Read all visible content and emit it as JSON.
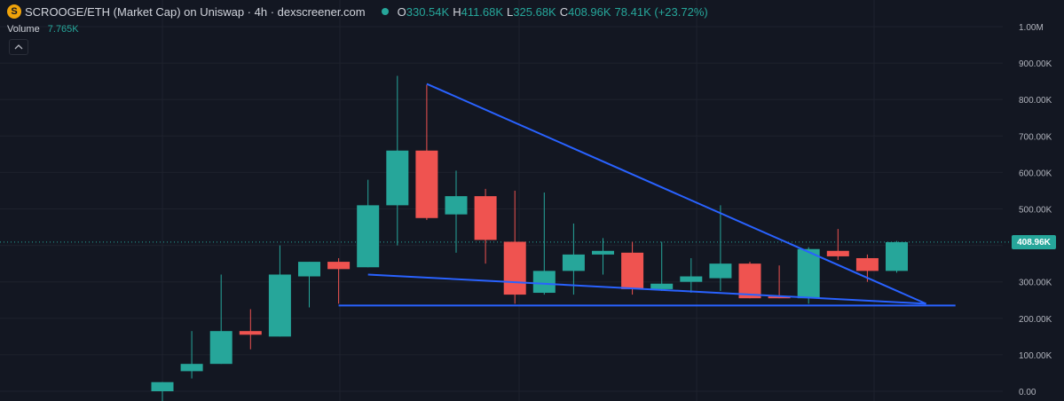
{
  "header": {
    "coin_icon": "S",
    "title": "SCROOGE/ETH (Market Cap) on Uniswap · 4h · dexscreener.com",
    "status_icon": "green-dot-icon",
    "ohlc": {
      "o_label": "O",
      "o_value": "330.54K",
      "h_label": "H",
      "h_value": "411.68K",
      "l_label": "L",
      "l_value": "325.68K",
      "c_label": "C",
      "c_value": "408.96K",
      "change": "78.41K (+23.72%)"
    },
    "volume_label": "Volume",
    "volume_value": "7.765K",
    "collapse_icon": "chevron-up-icon"
  },
  "colors": {
    "background": "#131722",
    "up": "#26a69a",
    "down": "#ef5350",
    "trendline": "#2962ff",
    "grid": "#1e222d",
    "axis_text": "#b2b5be"
  },
  "price_tag": "408.96K",
  "chart_data": {
    "type": "candlestick",
    "y_ticks": [
      "0.00",
      "100.00K",
      "200.00K",
      "300.00K",
      "400.00K",
      "500.00K",
      "600.00K",
      "700.00K",
      "800.00K",
      "900.00K",
      "1.00M"
    ],
    "ylim": [
      0,
      1000
    ],
    "y_unit": "K",
    "grid": true,
    "candles": [
      {
        "o": 0,
        "h": 25,
        "l": -60,
        "c": 25
      },
      {
        "o": 55,
        "h": 165,
        "l": 35,
        "c": 75
      },
      {
        "o": 75,
        "h": 320,
        "l": 75,
        "c": 165
      },
      {
        "o": 165,
        "h": 225,
        "l": 115,
        "c": 155
      },
      {
        "o": 150,
        "h": 400,
        "l": 150,
        "c": 320
      },
      {
        "o": 315,
        "h": 355,
        "l": 230,
        "c": 355
      },
      {
        "o": 355,
        "h": 365,
        "l": 240,
        "c": 335
      },
      {
        "o": 340,
        "h": 580,
        "l": 340,
        "c": 510
      },
      {
        "o": 510,
        "h": 865,
        "l": 400,
        "c": 660
      },
      {
        "o": 660,
        "h": 840,
        "l": 470,
        "c": 475
      },
      {
        "o": 485,
        "h": 605,
        "l": 380,
        "c": 535
      },
      {
        "o": 535,
        "h": 555,
        "l": 350,
        "c": 415
      },
      {
        "o": 410,
        "h": 550,
        "l": 240,
        "c": 265
      },
      {
        "o": 270,
        "h": 545,
        "l": 265,
        "c": 330
      },
      {
        "o": 330,
        "h": 460,
        "l": 265,
        "c": 375
      },
      {
        "o": 375,
        "h": 420,
        "l": 320,
        "c": 385
      },
      {
        "o": 380,
        "h": 410,
        "l": 265,
        "c": 280
      },
      {
        "o": 280,
        "h": 410,
        "l": 275,
        "c": 295
      },
      {
        "o": 300,
        "h": 365,
        "l": 270,
        "c": 315
      },
      {
        "o": 310,
        "h": 510,
        "l": 275,
        "c": 350
      },
      {
        "o": 350,
        "h": 355,
        "l": 255,
        "c": 255
      },
      {
        "o": 260,
        "h": 345,
        "l": 255,
        "c": 255
      },
      {
        "o": 255,
        "h": 395,
        "l": 240,
        "c": 390
      },
      {
        "o": 385,
        "h": 445,
        "l": 360,
        "c": 370
      },
      {
        "o": 365,
        "h": 375,
        "l": 300,
        "c": 330
      },
      {
        "o": 330,
        "h": 412,
        "l": 325,
        "c": 409
      }
    ],
    "last_price_line": 409,
    "trendlines": [
      {
        "from": [
          9,
          843
        ],
        "to": [
          26,
          240
        ]
      },
      {
        "from": [
          7,
          320
        ],
        "to": [
          26,
          240
        ]
      },
      {
        "from": [
          6,
          235
        ],
        "to": [
          27,
          235
        ]
      }
    ]
  }
}
